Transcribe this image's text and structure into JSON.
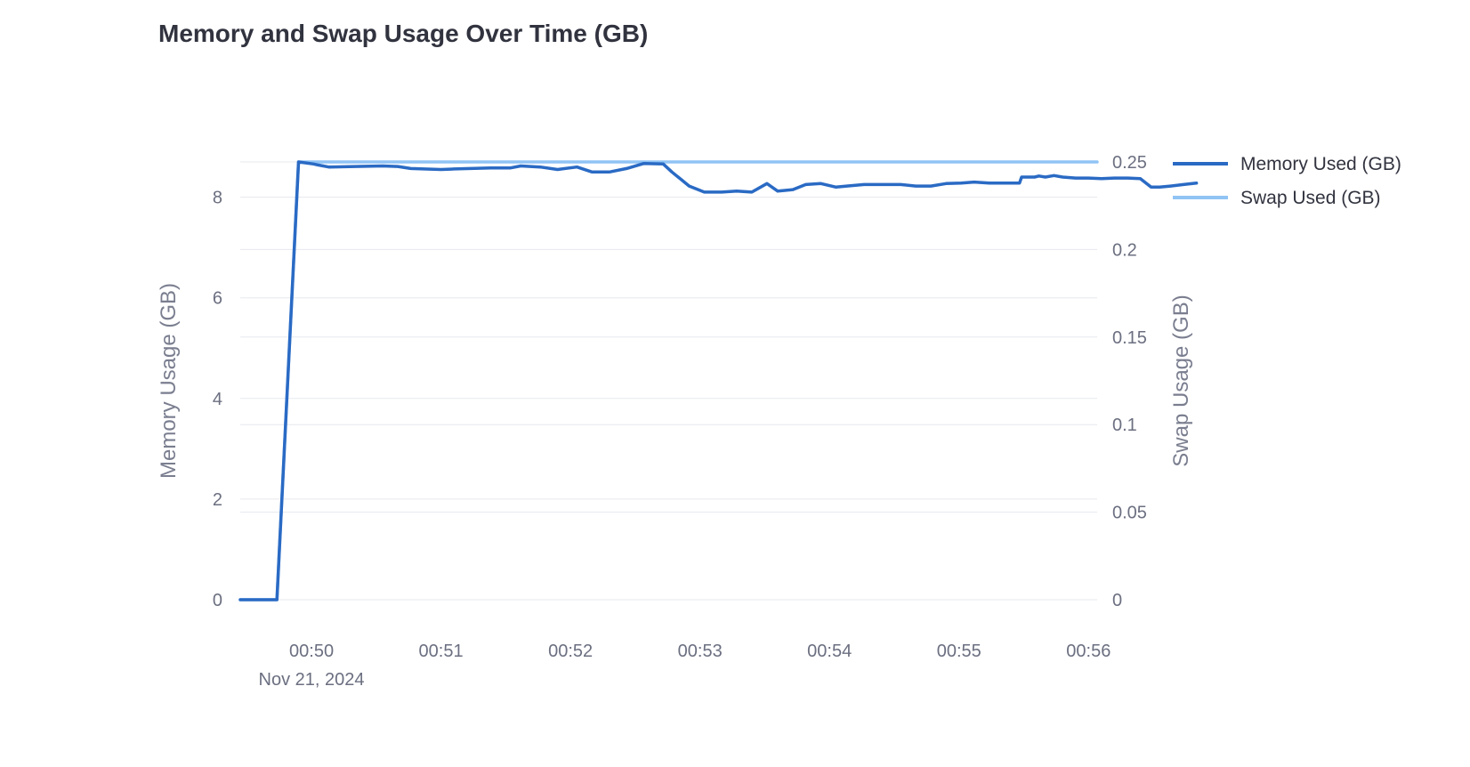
{
  "chart_data": {
    "type": "line",
    "title": "Memory and Swap Usage Over Time (GB)",
    "x_ticks": [
      "00:50",
      "00:51",
      "00:52",
      "00:53",
      "00:54",
      "00:55",
      "00:56"
    ],
    "x_date_label": "Nov 21, 2024",
    "x_range": [
      "2024-11-21T00:49:27",
      "2024-11-21T00:56:04"
    ],
    "y_left": {
      "label": "Memory Usage (GB)",
      "range": [
        0,
        8.7
      ],
      "ticks": [
        "0",
        "2",
        "4",
        "6",
        "8"
      ]
    },
    "y_right": {
      "label": "Swap Usage (GB)",
      "range": [
        0,
        0.25
      ],
      "ticks": [
        "0",
        "0.05",
        "0.1",
        "0.15",
        "0.2",
        "0.25"
      ]
    },
    "legend_position": "top-right",
    "grid": true,
    "series": [
      {
        "name": "Memory Used (GB)",
        "axis": "left",
        "color": "#2a6ac4",
        "points": [
          [
            "00:49:27",
            0
          ],
          [
            "00:49:37",
            0
          ],
          [
            "00:49:44",
            0
          ],
          [
            "00:49:54",
            8.7
          ],
          [
            "00:50:01",
            8.66
          ],
          [
            "00:50:03",
            8.64
          ],
          [
            "00:50:08",
            8.6
          ],
          [
            "00:50:20",
            8.61
          ],
          [
            "00:50:33",
            8.62
          ],
          [
            "00:50:40",
            8.61
          ],
          [
            "00:50:46",
            8.57
          ],
          [
            "00:51:00",
            8.55
          ],
          [
            "00:51:06",
            8.56
          ],
          [
            "00:51:23",
            8.58
          ],
          [
            "00:51:32",
            8.58
          ],
          [
            "00:51:37",
            8.62
          ],
          [
            "00:51:46",
            8.6
          ],
          [
            "00:51:54",
            8.55
          ],
          [
            "00:52:03",
            8.6
          ],
          [
            "00:52:10",
            8.5
          ],
          [
            "00:52:18",
            8.5
          ],
          [
            "00:52:26",
            8.57
          ],
          [
            "00:52:34",
            8.67
          ],
          [
            "00:52:43",
            8.66
          ],
          [
            "00:52:47",
            8.5
          ],
          [
            "00:52:55",
            8.22
          ],
          [
            "00:53:02",
            8.1
          ],
          [
            "00:53:10",
            8.1
          ],
          [
            "00:53:17",
            8.12
          ],
          [
            "00:53:24",
            8.1
          ],
          [
            "00:53:31",
            8.27
          ],
          [
            "00:53:36",
            8.12
          ],
          [
            "00:53:43",
            8.15
          ],
          [
            "00:53:49",
            8.25
          ],
          [
            "00:53:56",
            8.27
          ],
          [
            "00:54:03",
            8.2
          ],
          [
            "00:54:08",
            8.22
          ],
          [
            "00:54:16",
            8.25
          ],
          [
            "00:54:25",
            8.25
          ],
          [
            "00:54:33",
            8.25
          ],
          [
            "00:54:40",
            8.22
          ],
          [
            "00:54:47",
            8.22
          ],
          [
            "00:54:54",
            8.27
          ],
          [
            "00:55:01",
            8.28
          ],
          [
            "00:55:07",
            8.3
          ],
          [
            "00:55:14",
            8.28
          ],
          [
            "00:55:21",
            8.28
          ],
          [
            "00:55:28",
            8.28
          ],
          [
            "00:55:29",
            8.4
          ],
          [
            "00:55:35",
            8.4
          ],
          [
            "00:55:37",
            8.42
          ],
          [
            "00:55:40",
            8.4
          ],
          [
            "00:55:44",
            8.43
          ],
          [
            "00:55:48",
            8.4
          ],
          [
            "00:55:54",
            8.38
          ],
          [
            "00:56:00",
            8.38
          ],
          [
            "00:56:06",
            8.37
          ],
          [
            "00:56:12",
            8.38
          ],
          [
            "00:56:18",
            8.38
          ],
          [
            "00:56:24",
            8.37
          ],
          [
            "00:56:29",
            8.2
          ],
          [
            "00:56:33",
            8.2
          ],
          [
            "00:56:38",
            8.22
          ],
          [
            "00:56:44",
            8.25
          ],
          [
            "00:56:50",
            8.28
          ]
        ]
      },
      {
        "name": "Swap Used (GB)",
        "axis": "right",
        "color": "#90c4f5",
        "points": [
          [
            "00:49:27",
            0
          ],
          [
            "00:49:44",
            0
          ],
          [
            "00:49:54",
            0.25
          ],
          [
            "00:56:04",
            0.25
          ]
        ]
      }
    ]
  }
}
